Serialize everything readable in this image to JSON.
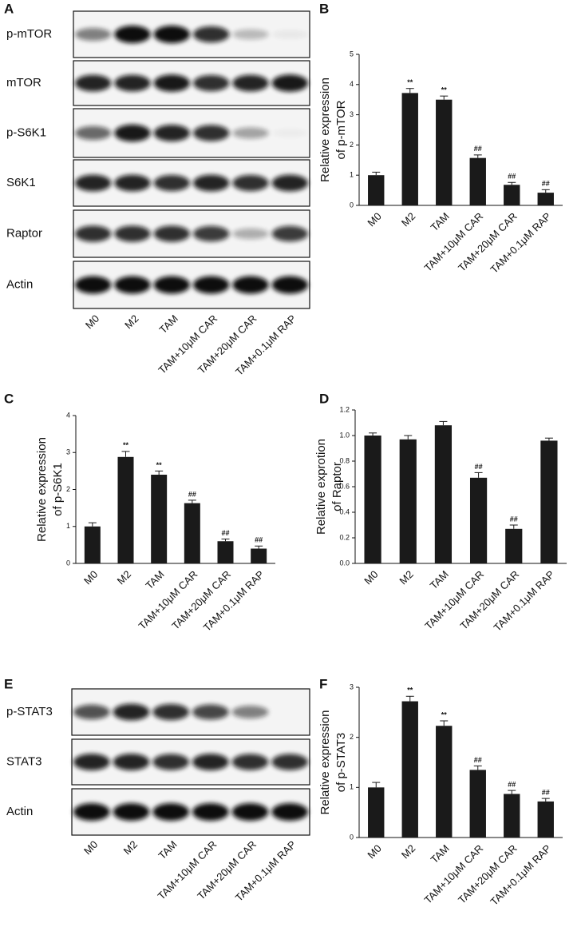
{
  "chart_data": [
    {
      "type": "bar",
      "panel": "B",
      "ylabel": [
        "Relative expression",
        "of p-mTOR"
      ],
      "categories": [
        "M0",
        "M2",
        "TAM",
        "TAM+10μM CAR",
        "TAM+20μM CAR",
        "TAM+0.1μM RAP"
      ],
      "values": [
        1.0,
        3.72,
        3.5,
        1.57,
        0.68,
        0.42
      ],
      "errors": [
        0.1,
        0.15,
        0.12,
        0.1,
        0.08,
        0.1
      ],
      "annotations": [
        null,
        "**",
        "**",
        "##",
        "##",
        "##"
      ],
      "color": "#1a1a1a",
      "ylim": [
        0,
        5
      ],
      "yticks": [
        0,
        1,
        2,
        3,
        4,
        5
      ]
    },
    {
      "type": "bar",
      "panel": "C",
      "ylabel": [
        "Relative expression",
        "of p-S6K1"
      ],
      "categories": [
        "M0",
        "M2",
        "TAM",
        "TAM+10μM CAR",
        "TAM+20μM CAR",
        "TAM+0.1μM RAP"
      ],
      "values": [
        1.0,
        2.88,
        2.4,
        1.63,
        0.6,
        0.4
      ],
      "errors": [
        0.1,
        0.15,
        0.1,
        0.08,
        0.06,
        0.07
      ],
      "annotations": [
        null,
        "**",
        "**",
        "##",
        "##",
        "##"
      ],
      "color": "#1a1a1a",
      "ylim": [
        0,
        4
      ],
      "yticks": [
        0,
        1,
        2,
        3,
        4
      ]
    },
    {
      "type": "bar",
      "panel": "D",
      "ylabel": [
        "Relative exprotion",
        "of Raptor"
      ],
      "categories": [
        "M0",
        "M2",
        "TAM",
        "TAM+10μM CAR",
        "TAM+20μM CAR",
        "TAM+0.1μM RAP"
      ],
      "values": [
        1.0,
        0.97,
        1.08,
        0.67,
        0.27,
        0.96
      ],
      "errors": [
        0.02,
        0.03,
        0.03,
        0.04,
        0.03,
        0.02
      ],
      "annotations": [
        null,
        null,
        null,
        "##",
        "##",
        null
      ],
      "color": "#1a1a1a",
      "ylim": [
        0,
        1.2
      ],
      "yticks": [
        {
          "value": 0,
          "label": "0.0"
        },
        0.2,
        0.4,
        0.6,
        0.8,
        {
          "value": 1,
          "label": "1.0"
        },
        1.2
      ]
    },
    {
      "type": "bar",
      "panel": "F",
      "ylabel": [
        "Relative expression",
        "of p-STAT3"
      ],
      "categories": [
        "M0",
        "M2",
        "TAM",
        "TAM+10μM CAR",
        "TAM+20μM CAR",
        "TAM+0.1μM RAP"
      ],
      "values": [
        1.0,
        2.72,
        2.23,
        1.35,
        0.87,
        0.72
      ],
      "errors": [
        0.1,
        0.1,
        0.1,
        0.08,
        0.07,
        0.06
      ],
      "annotations": [
        null,
        "**",
        "**",
        "##",
        "##",
        "##"
      ],
      "color": "#1a1a1a",
      "ylim": [
        0,
        3
      ],
      "yticks": [
        0,
        1,
        2,
        3
      ]
    }
  ],
  "blots": [
    {
      "panel": "A",
      "rows": [
        "p-mTOR",
        "mTOR",
        "p-S6K1",
        "S6K1",
        "Raptor",
        "Actin"
      ],
      "categories": [
        "M0",
        "M2",
        "TAM",
        "TAM+10μM CAR",
        "TAM+20μM CAR",
        "TAM+0.1μM RAP"
      ]
    },
    {
      "panel": "E",
      "rows": [
        "p-STAT3",
        "STAT3",
        "Actin"
      ],
      "categories": [
        "M0",
        "M2",
        "TAM",
        "TAM+10μM CAR",
        "TAM+20μM CAR",
        "TAM+0.1μM RAP"
      ]
    }
  ]
}
